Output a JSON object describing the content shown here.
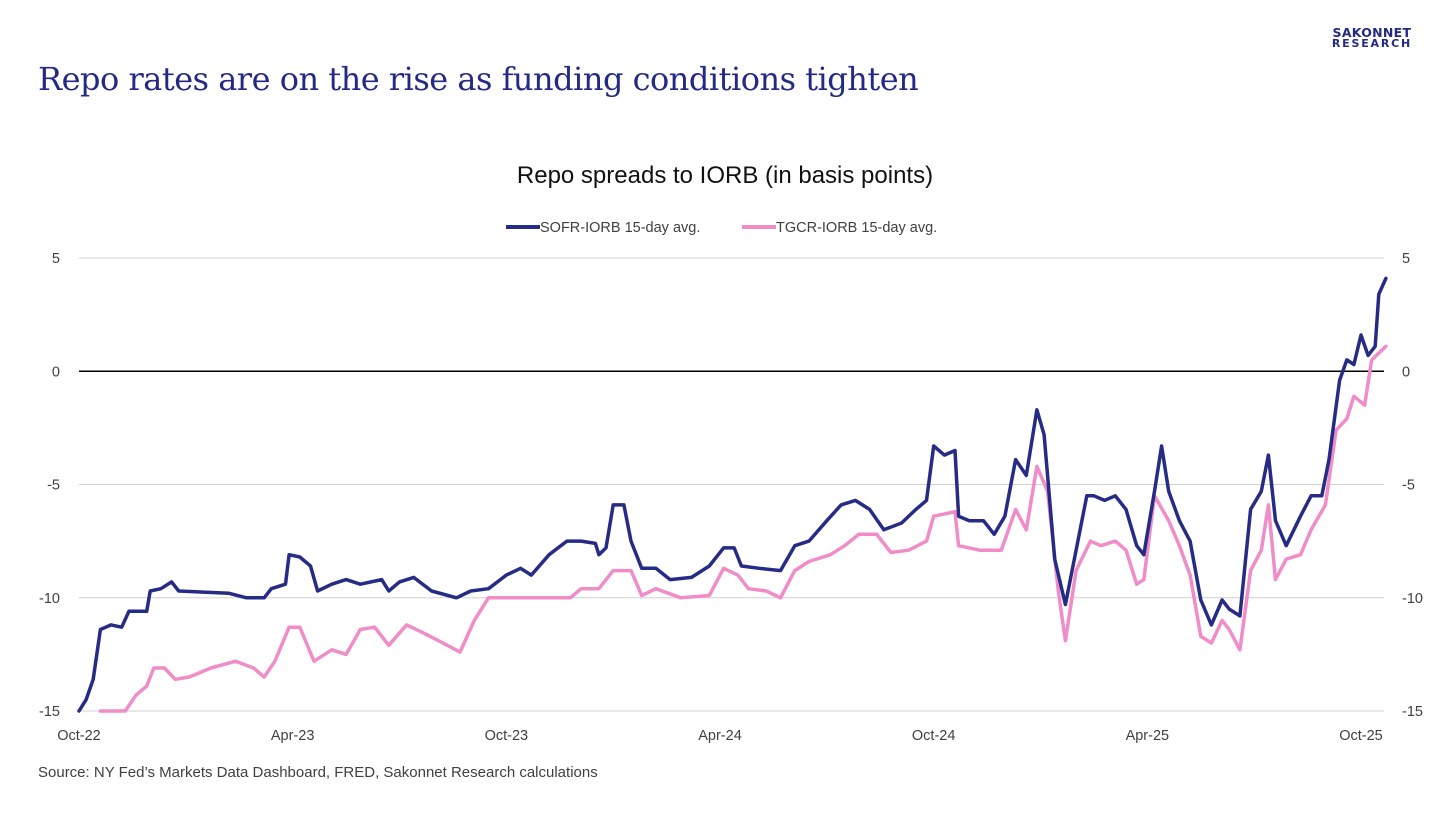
{
  "brand": {
    "line1": "SAKONNET",
    "line2": "RESEARCH"
  },
  "headline": "Repo rates are on the rise as funding conditions tighten",
  "source": "Source: NY Fed’s Markets Data Dashboard, FRED, Sakonnet Research calculations",
  "colors": {
    "sofr": "#262b86",
    "tgcr": "#f08cc8",
    "text": "#242a84"
  },
  "chart_data": {
    "type": "line",
    "title": "Repo spreads to IORB (in basis points)",
    "xlabel": "",
    "ylabel": "",
    "x_units": "months since Oct-22",
    "xlim": [
      0,
      36.7
    ],
    "ylim": [
      -15,
      5
    ],
    "yticks": [
      5,
      0,
      -5,
      -10,
      -15
    ],
    "ytick_labels": [
      "5",
      "0",
      "-5",
      "-10",
      "-15"
    ],
    "xticks": [
      0,
      6,
      12,
      18,
      24,
      30,
      36
    ],
    "xtick_labels": [
      "Oct-22",
      "Apr-23",
      "Oct-23",
      "Apr-24",
      "Oct-24",
      "Apr-25",
      "Oct-25"
    ],
    "grid": true,
    "legend_position": "top-center",
    "series": [
      {
        "name": "SOFR-IORB 15-day avg.",
        "color": "#262b86",
        "points": [
          [
            0,
            -15
          ],
          [
            0.2,
            -14.5
          ],
          [
            0.4,
            -13.6
          ],
          [
            0.6,
            -11.4
          ],
          [
            0.9,
            -11.2
          ],
          [
            1.2,
            -11.3
          ],
          [
            1.4,
            -10.6
          ],
          [
            1.9,
            -10.6
          ],
          [
            2.0,
            -9.7
          ],
          [
            2.3,
            -9.6
          ],
          [
            2.6,
            -9.3
          ],
          [
            2.8,
            -9.7
          ],
          [
            4.2,
            -9.8
          ],
          [
            4.7,
            -10
          ],
          [
            5.2,
            -10
          ],
          [
            5.4,
            -9.6
          ],
          [
            5.8,
            -9.4
          ],
          [
            5.9,
            -8.1
          ],
          [
            6.2,
            -8.2
          ],
          [
            6.5,
            -8.6
          ],
          [
            6.7,
            -9.7
          ],
          [
            7.1,
            -9.4
          ],
          [
            7.5,
            -9.2
          ],
          [
            7.9,
            -9.4
          ],
          [
            8.5,
            -9.2
          ],
          [
            8.7,
            -9.7
          ],
          [
            9.0,
            -9.3
          ],
          [
            9.4,
            -9.1
          ],
          [
            9.9,
            -9.7
          ],
          [
            10.6,
            -10
          ],
          [
            11.0,
            -9.7
          ],
          [
            11.5,
            -9.6
          ],
          [
            12.0,
            -9.0
          ],
          [
            12.4,
            -8.7
          ],
          [
            12.7,
            -9.0
          ],
          [
            13.2,
            -8.1
          ],
          [
            13.7,
            -7.5
          ],
          [
            14.1,
            -7.5
          ],
          [
            14.5,
            -7.6
          ],
          [
            14.6,
            -8.1
          ],
          [
            14.8,
            -7.8
          ],
          [
            15.0,
            -5.9
          ],
          [
            15.3,
            -5.9
          ],
          [
            15.5,
            -7.5
          ],
          [
            15.8,
            -8.7
          ],
          [
            16.2,
            -8.7
          ],
          [
            16.6,
            -9.2
          ],
          [
            17.2,
            -9.1
          ],
          [
            17.7,
            -8.6
          ],
          [
            18.1,
            -7.8
          ],
          [
            18.4,
            -7.8
          ],
          [
            18.6,
            -8.6
          ],
          [
            19.1,
            -8.7
          ],
          [
            19.7,
            -8.8
          ],
          [
            20.1,
            -7.7
          ],
          [
            20.5,
            -7.5
          ],
          [
            21.0,
            -6.6
          ],
          [
            21.4,
            -5.9
          ],
          [
            21.8,
            -5.7
          ],
          [
            22.2,
            -6.1
          ],
          [
            22.6,
            -7.0
          ],
          [
            23.1,
            -6.7
          ],
          [
            23.5,
            -6.1
          ],
          [
            23.8,
            -5.7
          ],
          [
            24.0,
            -3.3
          ],
          [
            24.3,
            -3.7
          ],
          [
            24.6,
            -3.5
          ],
          [
            24.7,
            -6.4
          ],
          [
            25.0,
            -6.6
          ],
          [
            25.4,
            -6.6
          ],
          [
            25.7,
            -7.2
          ],
          [
            26.0,
            -6.4
          ],
          [
            26.3,
            -3.9
          ],
          [
            26.6,
            -4.6
          ],
          [
            26.9,
            -1.7
          ],
          [
            27.1,
            -2.8
          ],
          [
            27.4,
            -8.3
          ],
          [
            27.7,
            -10.3
          ],
          [
            28.0,
            -7.9
          ],
          [
            28.3,
            -5.5
          ],
          [
            28.5,
            -5.5
          ],
          [
            28.8,
            -5.7
          ],
          [
            29.1,
            -5.5
          ],
          [
            29.4,
            -6.1
          ],
          [
            29.7,
            -7.7
          ],
          [
            29.9,
            -8.1
          ],
          [
            30.2,
            -5.3
          ],
          [
            30.4,
            -3.3
          ],
          [
            30.6,
            -5.3
          ],
          [
            30.9,
            -6.6
          ],
          [
            31.2,
            -7.5
          ],
          [
            31.5,
            -10.1
          ],
          [
            31.8,
            -11.2
          ],
          [
            32.1,
            -10.1
          ],
          [
            32.3,
            -10.5
          ],
          [
            32.6,
            -10.8
          ],
          [
            32.9,
            -6.1
          ],
          [
            33.2,
            -5.3
          ],
          [
            33.4,
            -3.7
          ],
          [
            33.6,
            -6.6
          ],
          [
            33.9,
            -7.7
          ],
          [
            34.3,
            -6.4
          ],
          [
            34.6,
            -5.5
          ],
          [
            34.9,
            -5.5
          ],
          [
            35.1,
            -3.9
          ],
          [
            35.4,
            -0.4
          ],
          [
            35.6,
            0.5
          ],
          [
            35.8,
            0.3
          ],
          [
            36.0,
            1.6
          ],
          [
            36.2,
            0.7
          ],
          [
            36.4,
            1.1
          ],
          [
            36.5,
            3.4
          ],
          [
            36.7,
            4.1
          ]
        ]
      },
      {
        "name": "TGCR-IORB 15-day avg.",
        "color": "#f08cc8",
        "points": [
          [
            0.6,
            -15
          ],
          [
            1.3,
            -15
          ],
          [
            1.6,
            -14.3
          ],
          [
            1.9,
            -13.9
          ],
          [
            2.1,
            -13.1
          ],
          [
            2.4,
            -13.1
          ],
          [
            2.7,
            -13.6
          ],
          [
            3.1,
            -13.5
          ],
          [
            3.7,
            -13.1
          ],
          [
            4.4,
            -12.8
          ],
          [
            4.9,
            -13.1
          ],
          [
            5.2,
            -13.5
          ],
          [
            5.5,
            -12.8
          ],
          [
            5.9,
            -11.3
          ],
          [
            6.2,
            -11.3
          ],
          [
            6.6,
            -12.8
          ],
          [
            7.1,
            -12.3
          ],
          [
            7.5,
            -12.5
          ],
          [
            7.9,
            -11.4
          ],
          [
            8.3,
            -11.3
          ],
          [
            8.7,
            -12.1
          ],
          [
            9.2,
            -11.2
          ],
          [
            9.6,
            -11.5
          ],
          [
            10.1,
            -11.9
          ],
          [
            10.7,
            -12.4
          ],
          [
            11.1,
            -11.0
          ],
          [
            11.5,
            -10
          ],
          [
            13.8,
            -10
          ],
          [
            14.1,
            -9.6
          ],
          [
            14.6,
            -9.6
          ],
          [
            15.0,
            -8.8
          ],
          [
            15.5,
            -8.8
          ],
          [
            15.8,
            -9.9
          ],
          [
            16.2,
            -9.6
          ],
          [
            16.9,
            -10
          ],
          [
            17.7,
            -9.9
          ],
          [
            18.1,
            -8.7
          ],
          [
            18.5,
            -9.0
          ],
          [
            18.8,
            -9.6
          ],
          [
            19.3,
            -9.7
          ],
          [
            19.7,
            -10
          ],
          [
            20.1,
            -8.8
          ],
          [
            20.5,
            -8.4
          ],
          [
            21.1,
            -8.1
          ],
          [
            21.5,
            -7.7
          ],
          [
            21.9,
            -7.2
          ],
          [
            22.4,
            -7.2
          ],
          [
            22.8,
            -8.0
          ],
          [
            23.3,
            -7.9
          ],
          [
            23.8,
            -7.5
          ],
          [
            24.0,
            -6.4
          ],
          [
            24.6,
            -6.2
          ],
          [
            24.7,
            -7.7
          ],
          [
            25.3,
            -7.9
          ],
          [
            25.9,
            -7.9
          ],
          [
            26.3,
            -6.1
          ],
          [
            26.6,
            -7.0
          ],
          [
            26.9,
            -4.2
          ],
          [
            27.2,
            -5.3
          ],
          [
            27.5,
            -9.7
          ],
          [
            27.7,
            -11.9
          ],
          [
            28.0,
            -8.8
          ],
          [
            28.4,
            -7.5
          ],
          [
            28.7,
            -7.7
          ],
          [
            29.1,
            -7.5
          ],
          [
            29.4,
            -7.9
          ],
          [
            29.7,
            -9.4
          ],
          [
            29.9,
            -9.2
          ],
          [
            30.2,
            -5.5
          ],
          [
            30.6,
            -6.6
          ],
          [
            30.9,
            -7.7
          ],
          [
            31.2,
            -9.0
          ],
          [
            31.5,
            -11.7
          ],
          [
            31.8,
            -12.0
          ],
          [
            32.1,
            -11.0
          ],
          [
            32.3,
            -11.4
          ],
          [
            32.6,
            -12.3
          ],
          [
            32.9,
            -8.8
          ],
          [
            33.2,
            -7.9
          ],
          [
            33.4,
            -5.9
          ],
          [
            33.6,
            -9.2
          ],
          [
            33.9,
            -8.3
          ],
          [
            34.3,
            -8.1
          ],
          [
            34.6,
            -7.0
          ],
          [
            35.0,
            -5.9
          ],
          [
            35.3,
            -2.6
          ],
          [
            35.6,
            -2.1
          ],
          [
            35.8,
            -1.1
          ],
          [
            36.1,
            -1.5
          ],
          [
            36.3,
            0.5
          ],
          [
            36.7,
            1.1
          ]
        ]
      }
    ]
  }
}
